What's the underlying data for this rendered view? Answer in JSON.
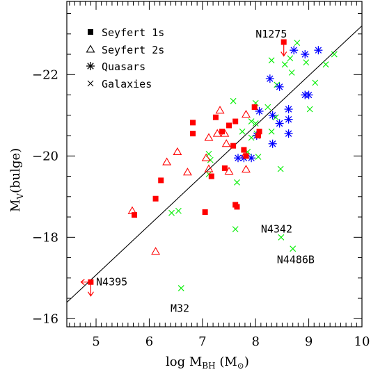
{
  "chart_data": {
    "type": "scatter",
    "xlabel_main": "log M",
    "xlabel_sub": "BH",
    "xlabel_unit_open": "(M",
    "xlabel_unit_sub": "⊙",
    "xlabel_unit_close": ")",
    "ylabel_main": "M",
    "ylabel_sub": "V",
    "ylabel_rest": "(bulge)",
    "xlim": [
      4.45,
      10.0
    ],
    "ylim": [
      -15.8,
      -23.8
    ],
    "x_ticks": [
      5,
      6,
      7,
      8,
      9,
      10
    ],
    "x_tick_labels": [
      "5",
      "6",
      "7",
      "8",
      "9",
      "10"
    ],
    "y_ticks": [
      -16,
      -18,
      -20,
      -22
    ],
    "y_tick_labels": [
      "−16",
      "−18",
      "−20",
      "−22"
    ],
    "legend": [
      {
        "label": "Seyfert 1s",
        "marker": "square"
      },
      {
        "label": "Seyfert 2s",
        "marker": "triangle"
      },
      {
        "label": "Quasars",
        "marker": "asterisk"
      },
      {
        "label": "Galaxies",
        "marker": "cross"
      }
    ],
    "legend_placement": "top-left",
    "fit_line": {
      "x": [
        4.45,
        10.0
      ],
      "y": [
        -16.4,
        -23.2
      ]
    },
    "series": [
      {
        "name": "Seyfert 1s",
        "marker": "square",
        "color": "#ff0000",
        "points": [
          [
            4.9,
            -16.9
          ],
          [
            5.72,
            -18.55
          ],
          [
            6.12,
            -18.95
          ],
          [
            6.22,
            -19.4
          ],
          [
            6.82,
            -20.82
          ],
          [
            6.82,
            -20.55
          ],
          [
            7.05,
            -18.62
          ],
          [
            7.17,
            -19.5
          ],
          [
            7.25,
            -20.95
          ],
          [
            7.37,
            -20.6
          ],
          [
            7.42,
            -19.7
          ],
          [
            7.5,
            -20.75
          ],
          [
            7.58,
            -20.25
          ],
          [
            7.62,
            -18.8
          ],
          [
            7.65,
            -18.75
          ],
          [
            7.62,
            -20.85
          ],
          [
            7.78,
            -20.15
          ],
          [
            7.82,
            -20.0
          ],
          [
            7.98,
            -21.2
          ],
          [
            8.07,
            -20.6
          ],
          [
            8.05,
            -20.5
          ],
          [
            8.53,
            -22.8
          ]
        ]
      },
      {
        "name": "Seyfert 2s",
        "marker": "triangle",
        "color": "#ff0000",
        "points": [
          [
            5.68,
            -18.65
          ],
          [
            6.12,
            -17.65
          ],
          [
            6.33,
            -19.85
          ],
          [
            6.53,
            -20.1
          ],
          [
            6.72,
            -19.6
          ],
          [
            7.07,
            -19.95
          ],
          [
            7.12,
            -20.45
          ],
          [
            7.12,
            -19.68
          ],
          [
            7.28,
            -20.55
          ],
          [
            7.33,
            -21.12
          ],
          [
            7.42,
            -20.55
          ],
          [
            7.45,
            -20.3
          ],
          [
            7.5,
            -19.62
          ],
          [
            7.8,
            -20.02
          ],
          [
            7.82,
            -21.02
          ],
          [
            7.82,
            -19.67
          ]
        ]
      },
      {
        "name": "Quasars",
        "marker": "asterisk",
        "color": "#0000ff",
        "points": [
          [
            7.67,
            -19.95
          ],
          [
            7.78,
            -19.95
          ],
          [
            7.92,
            -19.95
          ],
          [
            8.02,
            -20.5
          ],
          [
            8.07,
            -21.1
          ],
          [
            8.27,
            -21.9
          ],
          [
            8.32,
            -21.0
          ],
          [
            8.32,
            -20.3
          ],
          [
            8.45,
            -20.8
          ],
          [
            8.45,
            -21.7
          ],
          [
            8.62,
            -20.55
          ],
          [
            8.62,
            -20.9
          ],
          [
            8.62,
            -21.15
          ],
          [
            8.72,
            -22.6
          ],
          [
            8.93,
            -22.5
          ],
          [
            8.93,
            -21.5
          ],
          [
            9.0,
            -21.5
          ],
          [
            9.18,
            -22.6
          ]
        ]
      },
      {
        "name": "Galaxies",
        "marker": "cross",
        "color": "#00ee00",
        "points": [
          [
            6.42,
            -18.6
          ],
          [
            6.55,
            -18.65
          ],
          [
            6.6,
            -16.75
          ],
          [
            7.12,
            -20.05
          ],
          [
            7.15,
            -19.9
          ],
          [
            7.12,
            -19.55
          ],
          [
            7.58,
            -21.35
          ],
          [
            7.62,
            -18.2
          ],
          [
            7.65,
            -19.35
          ],
          [
            7.75,
            -20.6
          ],
          [
            7.85,
            -20.1
          ],
          [
            7.92,
            -20.45
          ],
          [
            7.92,
            -20.85
          ],
          [
            8.0,
            -21.3
          ],
          [
            8.0,
            -20.8
          ],
          [
            8.02,
            -20.55
          ],
          [
            8.05,
            -19.98
          ],
          [
            8.23,
            -21.2
          ],
          [
            8.3,
            -20.6
          ],
          [
            8.3,
            -22.35
          ],
          [
            8.38,
            -20.95
          ],
          [
            8.4,
            -21.75
          ],
          [
            8.47,
            -19.68
          ],
          [
            8.48,
            -18.0
          ],
          [
            8.55,
            -22.25
          ],
          [
            8.65,
            -22.4
          ],
          [
            8.68,
            -22.05
          ],
          [
            8.7,
            -17.72
          ],
          [
            8.78,
            -22.78
          ],
          [
            8.95,
            -22.3
          ],
          [
            9.02,
            -21.15
          ],
          [
            9.12,
            -21.8
          ],
          [
            9.32,
            -22.25
          ],
          [
            9.48,
            -22.5
          ]
        ]
      }
    ],
    "upper_limits": [
      {
        "from": [
          4.9,
          -16.9
        ],
        "direction": "down"
      },
      {
        "from": [
          4.9,
          -16.9
        ],
        "direction": "left"
      },
      {
        "from": [
          8.53,
          -22.8
        ],
        "direction": "down"
      }
    ],
    "annotations": [
      {
        "text": "N1275",
        "x": 8.0,
        "y": -23.0
      },
      {
        "text": "N4395",
        "x": 5.0,
        "y": -16.9
      },
      {
        "text": "M32",
        "x": 6.4,
        "y": -16.25
      },
      {
        "text": "N4342",
        "x": 8.1,
        "y": -18.2
      },
      {
        "text": "N4486B",
        "x": 8.4,
        "y": -17.45
      }
    ]
  }
}
